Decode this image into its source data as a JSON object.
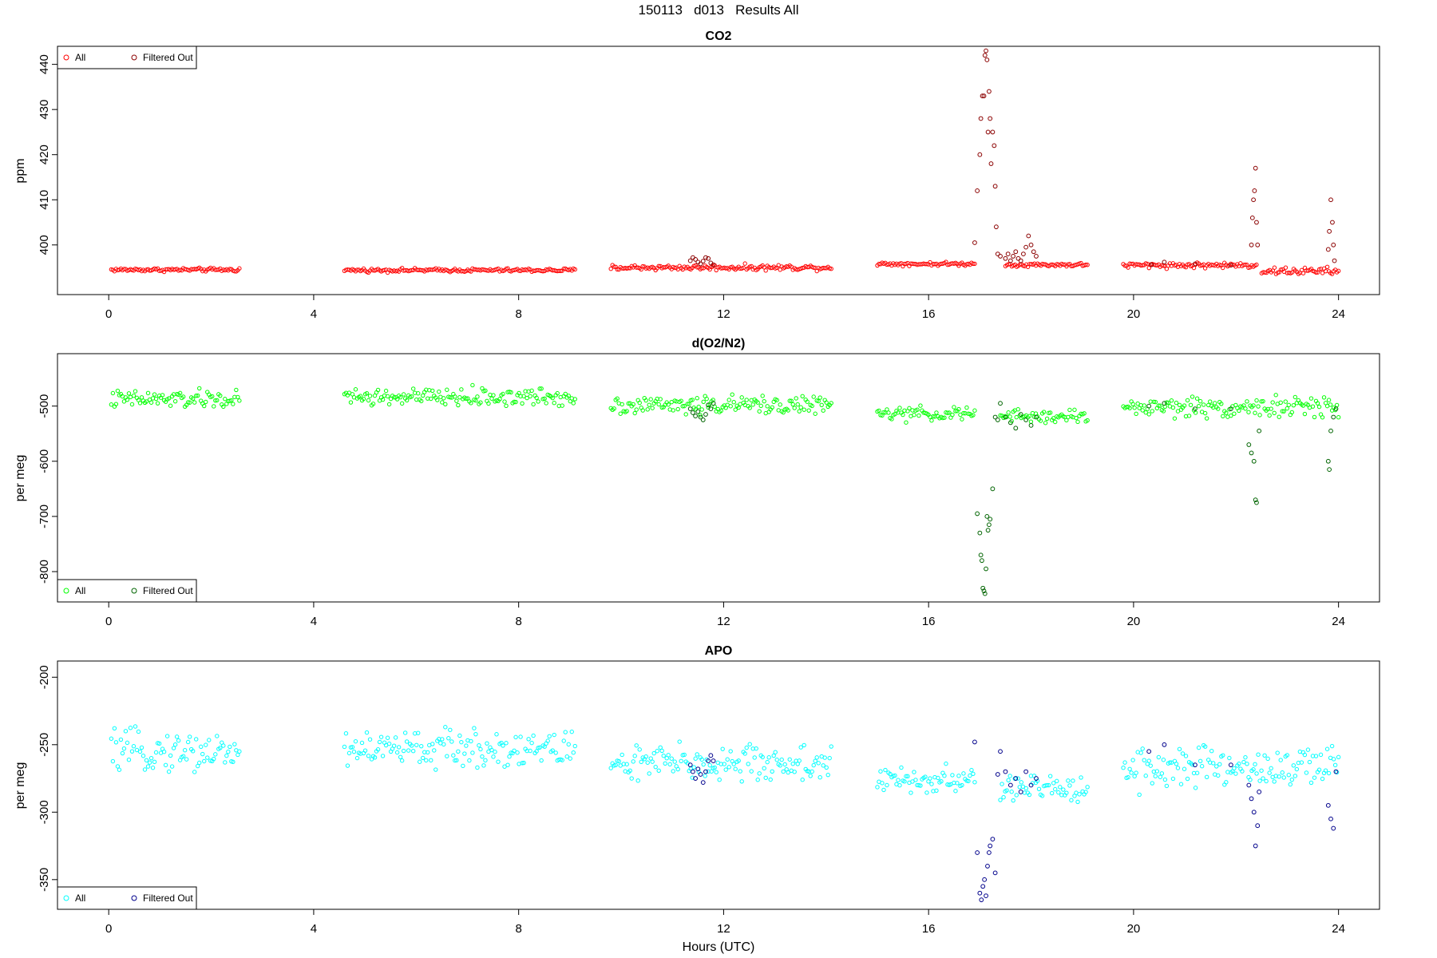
{
  "figure": {
    "title": "150113   d013   Results All",
    "xlabel": "Hours (UTC)"
  },
  "legend_labels": {
    "all": "All",
    "filtered": "Filtered Out"
  },
  "chart_data": [
    {
      "type": "scatter",
      "title": "CO2",
      "xlabel": "",
      "ylabel": "ppm",
      "xlim": [
        -1,
        24.8
      ],
      "ylim": [
        389,
        444
      ],
      "xticks": [
        0,
        4,
        8,
        12,
        16,
        20,
        24
      ],
      "yticks": [
        400,
        410,
        420,
        430,
        440
      ],
      "ytick_labels": [
        "400",
        "410",
        "420",
        "430",
        "440"
      ],
      "legend": "top-left",
      "colors": {
        "all": "#ff0000",
        "filtered": "#8b0000"
      },
      "series": [
        {
          "name": "All",
          "segments": [
            {
              "x0": 0.05,
              "x1": 2.55,
              "y": 394.5,
              "noise": 0.2
            },
            {
              "x0": 4.6,
              "x1": 9.1,
              "y": 394.4,
              "noise": 0.2
            },
            {
              "x0": 9.8,
              "x1": 14.1,
              "y": 395.0,
              "noise": 0.3
            },
            {
              "x0": 15.0,
              "x1": 16.9,
              "y": 395.8,
              "noise": 0.2
            },
            {
              "x0": 17.5,
              "x1": 19.1,
              "y": 395.6,
              "noise": 0.2
            },
            {
              "x0": 19.8,
              "x1": 22.4,
              "y": 395.5,
              "noise": 0.3
            },
            {
              "x0": 22.5,
              "x1": 24.0,
              "y": 394.2,
              "noise": 0.4
            }
          ]
        },
        {
          "name": "Filtered Out",
          "points": [
            [
              11.35,
              396.5
            ],
            [
              11.4,
              397.2
            ],
            [
              11.45,
              396.8
            ],
            [
              11.5,
              396.2
            ],
            [
              11.55,
              395.8
            ],
            [
              11.6,
              396.4
            ],
            [
              11.65,
              397.2
            ],
            [
              11.7,
              397.0
            ],
            [
              11.75,
              396.0
            ],
            [
              11.8,
              395.6
            ],
            [
              16.9,
              400.5
            ],
            [
              16.95,
              412.0
            ],
            [
              17.0,
              420.0
            ],
            [
              17.02,
              428.0
            ],
            [
              17.05,
              433.0
            ],
            [
              17.08,
              433.0
            ],
            [
              17.1,
              442.0
            ],
            [
              17.12,
              443.0
            ],
            [
              17.14,
              441.0
            ],
            [
              17.16,
              425.0
            ],
            [
              17.18,
              434.0
            ],
            [
              17.2,
              428.0
            ],
            [
              17.22,
              418.0
            ],
            [
              17.25,
              425.0
            ],
            [
              17.28,
              422.0
            ],
            [
              17.3,
              413.0
            ],
            [
              17.32,
              404.0
            ],
            [
              17.35,
              398.0
            ],
            [
              17.4,
              397.5
            ],
            [
              17.5,
              397.0
            ],
            [
              17.55,
              398.0
            ],
            [
              17.6,
              396.5
            ],
            [
              17.65,
              397.5
            ],
            [
              17.7,
              398.5
            ],
            [
              17.75,
              397.0
            ],
            [
              17.8,
              396.5
            ],
            [
              17.85,
              398.0
            ],
            [
              17.9,
              399.5
            ],
            [
              17.95,
              402.0
            ],
            [
              18.0,
              400.0
            ],
            [
              18.05,
              398.5
            ],
            [
              18.1,
              397.5
            ],
            [
              20.35,
              395.6
            ],
            [
              20.6,
              396.2
            ],
            [
              21.2,
              395.8
            ],
            [
              21.9,
              395.5
            ],
            [
              22.3,
              400.0
            ],
            [
              22.32,
              406.0
            ],
            [
              22.34,
              410.0
            ],
            [
              22.36,
              412.0
            ],
            [
              22.38,
              417.0
            ],
            [
              22.4,
              405.0
            ],
            [
              22.42,
              400.0
            ],
            [
              23.8,
              399.0
            ],
            [
              23.82,
              403.0
            ],
            [
              23.85,
              410.0
            ],
            [
              23.88,
              405.0
            ],
            [
              23.9,
              400.0
            ],
            [
              23.92,
              396.5
            ]
          ]
        }
      ]
    },
    {
      "type": "scatter",
      "title": "d(O2/N2)",
      "xlabel": "",
      "ylabel": "per meg",
      "xlim": [
        -1,
        24.8
      ],
      "ylim": [
        -855,
        -405
      ],
      "xticks": [
        0,
        4,
        8,
        12,
        16,
        20,
        24
      ],
      "yticks": [
        -500,
        -600,
        -700,
        -800
      ],
      "ytick_labels": [
        "-500",
        "-600",
        "-700",
        "-800"
      ],
      "legend": "bottom-left",
      "colors": {
        "all": "#00ff00",
        "filtered": "#006400"
      },
      "series": [
        {
          "name": "All",
          "segments": [
            {
              "x0": 0.05,
              "x1": 2.55,
              "y": -488,
              "noise": 8
            },
            {
              "x0": 4.6,
              "x1": 9.1,
              "y": -484,
              "noise": 8
            },
            {
              "x0": 9.8,
              "x1": 14.1,
              "y": -498,
              "noise": 8
            },
            {
              "x0": 15.0,
              "x1": 16.9,
              "y": -514,
              "noise": 6
            },
            {
              "x0": 17.4,
              "x1": 19.1,
              "y": -519,
              "noise": 6
            },
            {
              "x0": 19.8,
              "x1": 24.0,
              "y": -502,
              "noise": 9
            }
          ]
        },
        {
          "name": "Filtered Out",
          "points": [
            [
              11.35,
              -505
            ],
            [
              11.4,
              -512
            ],
            [
              11.45,
              -518
            ],
            [
              11.5,
              -510
            ],
            [
              11.55,
              -520
            ],
            [
              11.6,
              -525
            ],
            [
              11.65,
              -515
            ],
            [
              11.7,
              -498
            ],
            [
              11.75,
              -505
            ],
            [
              11.8,
              -495
            ],
            [
              16.95,
              -695
            ],
            [
              17.0,
              -730
            ],
            [
              17.02,
              -770
            ],
            [
              17.04,
              -780
            ],
            [
              17.06,
              -830
            ],
            [
              17.08,
              -835
            ],
            [
              17.1,
              -840
            ],
            [
              17.12,
              -795
            ],
            [
              17.14,
              -700
            ],
            [
              17.16,
              -725
            ],
            [
              17.18,
              -715
            ],
            [
              17.2,
              -705
            ],
            [
              17.25,
              -650
            ],
            [
              17.3,
              -520
            ],
            [
              17.35,
              -525
            ],
            [
              17.4,
              -495
            ],
            [
              17.5,
              -520
            ],
            [
              17.6,
              -530
            ],
            [
              17.7,
              -540
            ],
            [
              17.8,
              -515
            ],
            [
              17.9,
              -525
            ],
            [
              18.0,
              -535
            ],
            [
              18.1,
              -520
            ],
            [
              20.3,
              -500
            ],
            [
              20.6,
              -495
            ],
            [
              21.2,
              -505
            ],
            [
              21.9,
              -505
            ],
            [
              22.25,
              -570
            ],
            [
              22.3,
              -585
            ],
            [
              22.35,
              -600
            ],
            [
              22.38,
              -670
            ],
            [
              22.4,
              -675
            ],
            [
              22.45,
              -545
            ],
            [
              23.8,
              -600
            ],
            [
              23.82,
              -615
            ],
            [
              23.85,
              -545
            ],
            [
              23.9,
              -520
            ],
            [
              23.95,
              -505
            ]
          ]
        }
      ]
    },
    {
      "type": "scatter",
      "title": "APO",
      "xlabel": "Hours (UTC)",
      "ylabel": "per meg",
      "xlim": [
        -1,
        24.8
      ],
      "ylim": [
        -372,
        -188
      ],
      "xticks": [
        0,
        4,
        8,
        12,
        16,
        20,
        24
      ],
      "yticks": [
        -200,
        -250,
        -300,
        -350
      ],
      "ytick_labels": [
        "-200",
        "-250",
        "-300",
        "-350"
      ],
      "legend": "bottom-left",
      "colors": {
        "all": "#00ffff",
        "filtered": "#00008b"
      },
      "series": [
        {
          "name": "All",
          "segments": [
            {
              "x0": 0.05,
              "x1": 2.55,
              "y": -255,
              "noise": 7
            },
            {
              "x0": 4.6,
              "x1": 9.1,
              "y": -253,
              "noise": 7
            },
            {
              "x0": 9.8,
              "x1": 14.1,
              "y": -264,
              "noise": 7
            },
            {
              "x0": 15.0,
              "x1": 16.9,
              "y": -277,
              "noise": 5
            },
            {
              "x0": 17.4,
              "x1": 19.1,
              "y": -282,
              "noise": 5
            },
            {
              "x0": 19.8,
              "x1": 24.0,
              "y": -267,
              "noise": 8
            }
          ]
        },
        {
          "name": "Filtered Out",
          "points": [
            [
              11.35,
              -265
            ],
            [
              11.4,
              -270
            ],
            [
              11.45,
              -275
            ],
            [
              11.5,
              -268
            ],
            [
              11.55,
              -272
            ],
            [
              11.6,
              -278
            ],
            [
              11.65,
              -270
            ],
            [
              11.7,
              -262
            ],
            [
              11.75,
              -258
            ],
            [
              11.8,
              -262
            ],
            [
              16.9,
              -248
            ],
            [
              16.95,
              -330
            ],
            [
              17.0,
              -360
            ],
            [
              17.03,
              -365
            ],
            [
              17.06,
              -355
            ],
            [
              17.09,
              -350
            ],
            [
              17.12,
              -362
            ],
            [
              17.15,
              -340
            ],
            [
              17.18,
              -330
            ],
            [
              17.2,
              -325
            ],
            [
              17.25,
              -320
            ],
            [
              17.3,
              -345
            ],
            [
              17.35,
              -272
            ],
            [
              17.4,
              -255
            ],
            [
              17.5,
              -270
            ],
            [
              17.6,
              -280
            ],
            [
              17.7,
              -275
            ],
            [
              17.8,
              -285
            ],
            [
              17.9,
              -270
            ],
            [
              18.0,
              -280
            ],
            [
              18.1,
              -275
            ],
            [
              20.3,
              -255
            ],
            [
              20.6,
              -250
            ],
            [
              21.2,
              -265
            ],
            [
              21.9,
              -265
            ],
            [
              22.25,
              -280
            ],
            [
              22.3,
              -290
            ],
            [
              22.35,
              -300
            ],
            [
              22.38,
              -325
            ],
            [
              22.42,
              -310
            ],
            [
              22.45,
              -285
            ],
            [
              23.8,
              -295
            ],
            [
              23.85,
              -305
            ],
            [
              23.9,
              -312
            ],
            [
              23.95,
              -270
            ]
          ]
        }
      ]
    }
  ]
}
